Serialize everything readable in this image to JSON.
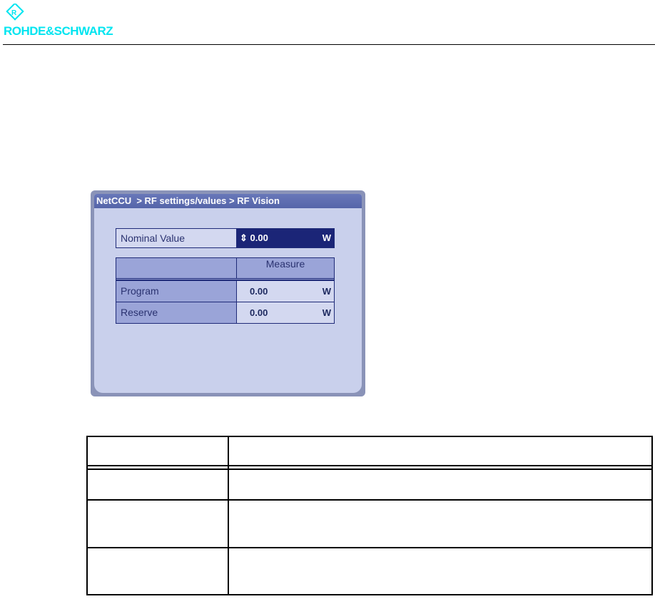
{
  "brand": {
    "name": "ROHDE&SCHWARZ",
    "logo_color": "#00e5f0"
  },
  "panel": {
    "breadcrumb": "NetCCU  > RF settings/values > RF Vision",
    "nominal": {
      "label": "Nominal Value",
      "value": "0.00",
      "unit": "W",
      "spinner_icon": "up-down-arrows"
    },
    "measure_table": {
      "header": "Measure",
      "rows": [
        {
          "label": "Program",
          "value": "0.00",
          "unit": "W"
        },
        {
          "label": "Reserve",
          "value": "0.00",
          "unit": "W"
        }
      ]
    }
  },
  "colors": {
    "title_bar": "#5a6aad",
    "panel_bg": "#c9d0ec",
    "value_bg": "#1b2577"
  }
}
